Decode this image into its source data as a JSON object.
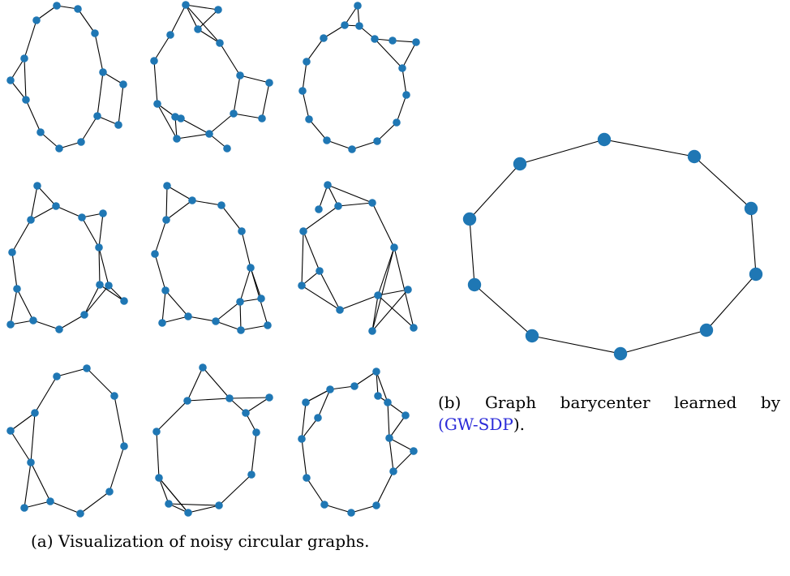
{
  "captions": {
    "a": "(a) Visualization of noisy circular graphs.",
    "b_line1_words": [
      "(b)",
      "Graph",
      "barycenter",
      "learned",
      "by"
    ],
    "b_line2_open": "(",
    "b_line2_link": "GW-SDP",
    "b_line2_close": ")."
  },
  "colors": {
    "node": "#1f77b4",
    "edge": "#000000",
    "link": "#2a2ad8"
  }
}
